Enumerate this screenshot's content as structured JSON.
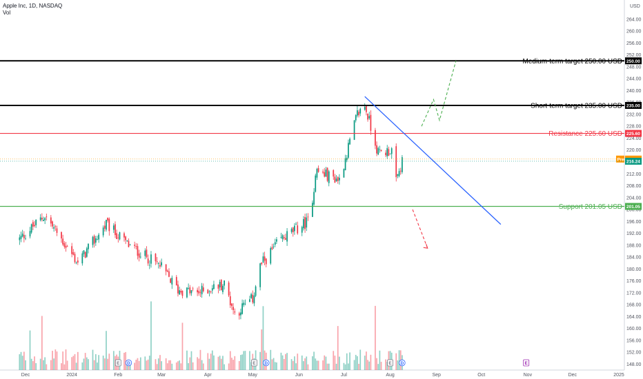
{
  "header": {
    "symbol_line": "Apple Inc, 1D, NASDAQ",
    "volume_label": "Vol"
  },
  "price_axis": {
    "currency": "USD",
    "ticks": [
      "264.00",
      "260.00",
      "256.00",
      "252.00",
      "248.00",
      "244.00",
      "240.00",
      "236.00",
      "232.00",
      "228.00",
      "224.00",
      "220.00",
      "216.00",
      "212.00",
      "208.00",
      "204.00",
      "200.00",
      "196.00",
      "192.00",
      "188.00",
      "184.00",
      "180.00",
      "176.00",
      "172.00",
      "168.00",
      "164.00",
      "160.00",
      "156.00",
      "152.00",
      "148.00"
    ]
  },
  "time_axis": {
    "ticks": [
      "Dec",
      "2024",
      "Feb",
      "Mar",
      "Apr",
      "May",
      "Jun",
      "Jul",
      "Aug",
      "Sep",
      "Oct",
      "Nov",
      "Dec",
      "2025"
    ]
  },
  "levels": [
    {
      "label": "Medium-term target 250.00 USD",
      "tag": "250.00",
      "value": 250.0,
      "color": "#000000"
    },
    {
      "label": "Short-term target 235.00 USD",
      "tag": "235.00",
      "value": 235.0,
      "color": "#000000"
    },
    {
      "label": "Resistance 225.60 USD",
      "tag": "225.60",
      "value": 225.6,
      "color": "#f23645"
    },
    {
      "label": "Support 201.05 USD",
      "tag": "201.05",
      "value": 201.05,
      "color": "#4caf50"
    }
  ],
  "price_tags": [
    {
      "tag": "216.97",
      "value": 216.97,
      "color": "#ff9800",
      "prefix": "Pre"
    },
    {
      "tag": "216.24",
      "value": 216.24,
      "color": "#089981"
    }
  ],
  "event_markers": [
    "E",
    "D",
    "E",
    "D",
    "E",
    "D",
    "E"
  ],
  "colors": {
    "up": "#089981",
    "down": "#f23645",
    "trendline": "#2962ff",
    "bull_projection": "#4caf50",
    "bear_projection": "#f23645"
  },
  "chart_data": {
    "type": "candlestick",
    "title": "Apple Inc, 1D, NASDAQ",
    "ylim": [
      146,
      268
    ],
    "xlim": [
      "2023-11-20",
      "2025-01-05"
    ],
    "grid": false,
    "candle_anchors": [
      {
        "date": "2023-11-27",
        "price": 190
      },
      {
        "date": "2023-12-14",
        "price": 198
      },
      {
        "date": "2024-01-05",
        "price": 182
      },
      {
        "date": "2024-01-24",
        "price": 195
      },
      {
        "date": "2024-02-08",
        "price": 188
      },
      {
        "date": "2024-02-29",
        "price": 181
      },
      {
        "date": "2024-03-12",
        "price": 173
      },
      {
        "date": "2024-03-25",
        "price": 172
      },
      {
        "date": "2024-04-12",
        "price": 175
      },
      {
        "date": "2024-04-19",
        "price": 165
      },
      {
        "date": "2024-05-01",
        "price": 170
      },
      {
        "date": "2024-05-06",
        "price": 181
      },
      {
        "date": "2024-05-20",
        "price": 190
      },
      {
        "date": "2024-06-07",
        "price": 196
      },
      {
        "date": "2024-06-11",
        "price": 207
      },
      {
        "date": "2024-06-12",
        "price": 213
      },
      {
        "date": "2024-06-28",
        "price": 210
      },
      {
        "date": "2024-07-10",
        "price": 232
      },
      {
        "date": "2024-07-15",
        "price": 235
      },
      {
        "date": "2024-07-24",
        "price": 219
      },
      {
        "date": "2024-08-02",
        "price": 220
      },
      {
        "date": "2024-08-05",
        "price": 209
      },
      {
        "date": "2024-08-09",
        "price": 216
      }
    ],
    "trendline": [
      {
        "date": "2024-07-15",
        "price": 238
      },
      {
        "date": "2024-10-14",
        "price": 195
      }
    ],
    "projection_up": [
      {
        "date": "2024-08-22",
        "price": 228
      },
      {
        "date": "2024-08-30",
        "price": 237
      },
      {
        "date": "2024-09-03",
        "price": 230
      },
      {
        "date": "2024-09-14",
        "price": 250
      }
    ],
    "projection_down": [
      {
        "date": "2024-08-16",
        "price": 200
      },
      {
        "date": "2024-08-26",
        "price": 187
      }
    ]
  }
}
